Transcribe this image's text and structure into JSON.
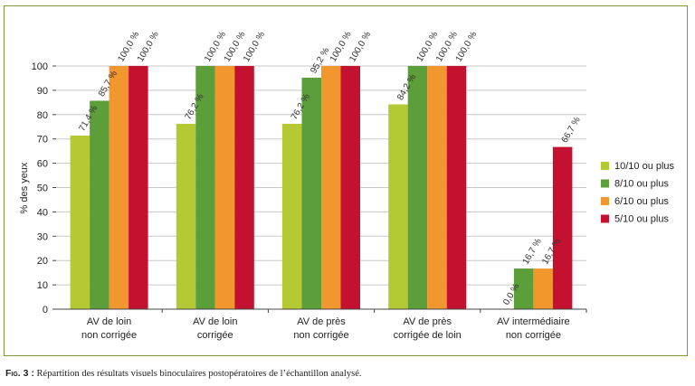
{
  "chart_data": {
    "type": "bar",
    "ylabel": "% des yeux",
    "ylim": [
      0,
      100
    ],
    "yticks": [
      0,
      10,
      20,
      30,
      40,
      50,
      60,
      70,
      80,
      90,
      100
    ],
    "grid": "horizontal",
    "legend_position": "right",
    "categories": [
      [
        "AV de loin",
        "non corrigée"
      ],
      [
        "AV de loin",
        "corrigée"
      ],
      [
        "AV de près",
        "non corrigée"
      ],
      [
        "AV de près",
        "corrigée de loin"
      ],
      [
        "AV intermédiaire",
        "non corrigée"
      ]
    ],
    "series": [
      {
        "name": "10/10 ou plus",
        "color": "#b5c934",
        "values": [
          71.4,
          76.2,
          76.2,
          84.2,
          0.0
        ],
        "labels": [
          "71,4 %",
          "76,2 %",
          "76,2 %",
          "84,2 %",
          "0,0 %"
        ]
      },
      {
        "name": "8/10 ou plus",
        "color": "#5c9e3a",
        "values": [
          85.7,
          100.0,
          95.2,
          100.0,
          16.7
        ],
        "labels": [
          "85,7 %",
          "100,0 %",
          "95,2 %",
          "100,0 %",
          "16,7 %"
        ]
      },
      {
        "name": "6/10 ou plus",
        "color": "#f2962e",
        "values": [
          100.0,
          100.0,
          100.0,
          100.0,
          16.7
        ],
        "labels": [
          "100,0 %",
          "100,0 %",
          "100,0 %",
          "100,0 %",
          "16,7 %"
        ]
      },
      {
        "name": "5/10 ou plus",
        "color": "#c4112f",
        "values": [
          100.0,
          100.0,
          100.0,
          100.0,
          66.7
        ],
        "labels": [
          "100,0 %",
          "100,0 %",
          "100,0 %",
          "100,0 %",
          "66,7 %"
        ]
      }
    ]
  },
  "caption": {
    "fig": "Fig. 3 :",
    "text": " Répartition des résultats visuels binoculaires postopératoires de l’échantillon analysé."
  }
}
